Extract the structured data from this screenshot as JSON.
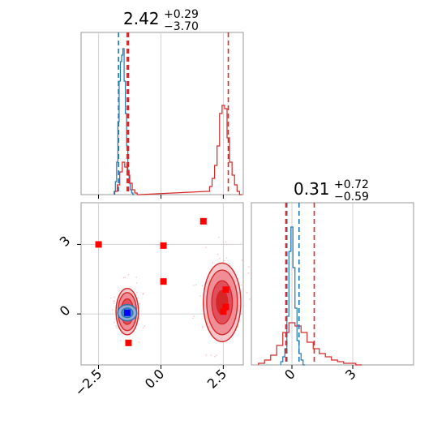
{
  "chart_data": [
    {
      "type": "corner",
      "panel": "marginal-x",
      "title": {
        "value": "2.42",
        "upper": "+0.29",
        "lower": "−3.70"
      },
      "xlim": [
        -3.2,
        3.3
      ],
      "xticks": [
        -2.5,
        0.0,
        2.5
      ],
      "vlines": {
        "blue": [
          -1.7,
          -1.35
        ],
        "red": [
          -1.35,
          -1.3,
          2.7
        ]
      },
      "series": [
        {
          "color": "#1f77b4",
          "x": [
            -1.85,
            -1.8,
            -1.75,
            -1.7,
            -1.65,
            -1.6,
            -1.55,
            -1.5,
            -1.45,
            -1.4,
            -1.35,
            -1.3,
            -1.25,
            -1.2,
            -1.15,
            -1.1
          ],
          "values": [
            0.02,
            0.08,
            0.2,
            0.45,
            0.7,
            0.82,
            0.86,
            0.9,
            0.7,
            0.5,
            0.3,
            0.15,
            0.07,
            0.03,
            0.01,
            0.0
          ]
        },
        {
          "color": "#d62728",
          "x": [
            -1.8,
            -1.7,
            -1.6,
            -1.5,
            -1.4,
            -1.3,
            -1.2,
            -1.1,
            -1.0,
            -0.9,
            1.9,
            2.0,
            2.1,
            2.2,
            2.3,
            2.4,
            2.5,
            2.6,
            2.7,
            2.8,
            2.9,
            3.0,
            3.1,
            3.2
          ],
          "values": [
            0.02,
            0.06,
            0.14,
            0.2,
            0.17,
            0.12,
            0.07,
            0.03,
            0.01,
            0.0,
            0.02,
            0.05,
            0.1,
            0.18,
            0.3,
            0.5,
            0.55,
            0.53,
            0.35,
            0.2,
            0.12,
            0.06,
            0.02,
            0.0
          ]
        }
      ]
    },
    {
      "type": "corner",
      "panel": "marginal-y",
      "title": {
        "value": "0.31",
        "upper": "+0.72",
        "lower": "−0.59"
      },
      "xlim": [
        -2.0,
        6.0
      ],
      "xticks": [
        0,
        3
      ],
      "vlines": {
        "blue": [
          -0.25,
          0.35
        ],
        "red": [
          -0.3,
          1.1
        ]
      },
      "series": [
        {
          "color": "#1f77b4",
          "x": [
            -0.5,
            -0.4,
            -0.3,
            -0.2,
            -0.1,
            0.0,
            0.1,
            0.2,
            0.3,
            0.4,
            0.5,
            0.6
          ],
          "values": [
            0.02,
            0.05,
            0.1,
            0.3,
            0.7,
            0.85,
            0.6,
            0.35,
            0.15,
            0.07,
            0.03,
            0.0
          ]
        },
        {
          "color": "#d62728",
          "x": [
            -1.5,
            -1.2,
            -0.9,
            -0.6,
            -0.3,
            0.0,
            0.3,
            0.6,
            0.9,
            1.2,
            1.5,
            1.8,
            2.1,
            2.4,
            2.7,
            3.0,
            3.3
          ],
          "values": [
            0.01,
            0.03,
            0.06,
            0.12,
            0.2,
            0.26,
            0.24,
            0.2,
            0.14,
            0.1,
            0.07,
            0.05,
            0.03,
            0.02,
            0.01,
            0.01,
            0.0
          ]
        }
      ]
    },
    {
      "type": "scatter",
      "panel": "joint",
      "xlim": [
        -3.2,
        3.3
      ],
      "ylim": [
        -2.2,
        4.8
      ],
      "xticks": [
        -2.5,
        0.0,
        2.5
      ],
      "yticks": [
        0,
        3
      ],
      "red_squares": [
        [
          -2.5,
          3.0
        ],
        [
          0.1,
          2.95
        ],
        [
          0.1,
          1.4
        ],
        [
          1.7,
          4.0
        ],
        [
          -1.3,
          -1.25
        ],
        [
          2.5,
          0.1
        ],
        [
          2.6,
          1.05
        ],
        [
          2.6,
          0.3
        ]
      ],
      "blue_squares": [
        [
          -1.35,
          0.05
        ]
      ],
      "red_blobs": [
        {
          "cx": -1.35,
          "cy": 0.1,
          "rx": 0.45,
          "ry": 1.0
        },
        {
          "cx": 2.45,
          "cy": 0.5,
          "rx": 0.75,
          "ry": 1.7
        }
      ],
      "blue_blob": {
        "cx": -1.35,
        "cy": 0.05,
        "rx": 0.38,
        "ry": 0.35
      }
    }
  ]
}
